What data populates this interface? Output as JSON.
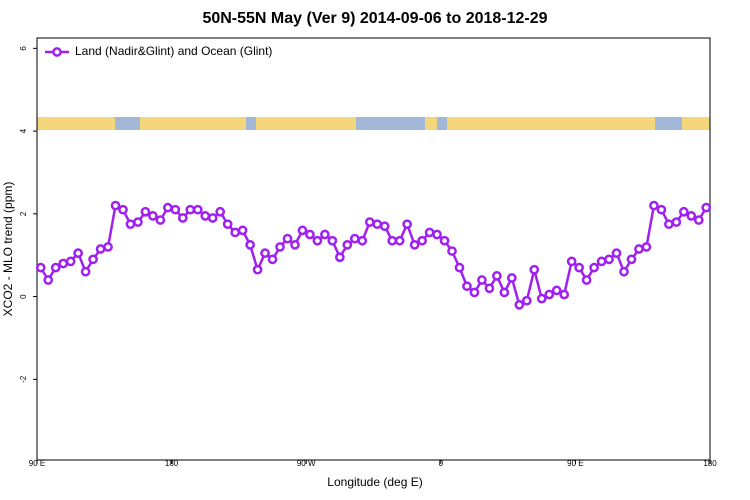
{
  "chart_data": {
    "type": "line",
    "title": "50N-55N May (Ver 9)   2014-09-06 to 2018-12-29",
    "x_label": "Longitude (deg E)",
    "y_label": "XCO2 - MLO trend (ppm)",
    "xlim": [
      90,
      540
    ],
    "ylim": [
      -3.95,
      6.25
    ],
    "xticks": [
      {
        "value": 90,
        "label": "90 E"
      },
      180,
      {
        "value": 270,
        "label": "90 W"
      },
      {
        "value": 360,
        "label": "0"
      },
      {
        "value": 450,
        "label": "90 E"
      },
      {
        "value": 540,
        "label": "180"
      }
    ],
    "yticks": [
      -2,
      0,
      2,
      4,
      6
    ],
    "legend": "top-left",
    "x": [
      92.5,
      97.5,
      102.5,
      107.5,
      112.5,
      117.5,
      122.5,
      127.5,
      132.5,
      137.5,
      142.5,
      147.5,
      152.5,
      157.5,
      162.5,
      167.5,
      172.5,
      177.5,
      182.5,
      187.5,
      192.5,
      197.5,
      202.5,
      207.5,
      212.5,
      217.5,
      222.5,
      227.5,
      232.5,
      237.5,
      242.5,
      247.5,
      252.5,
      257.5,
      262.5,
      267.5,
      272.5,
      277.5,
      282.5,
      287.5,
      292.5,
      297.5,
      302.5,
      307.5,
      312.5,
      317.5,
      322.5,
      327.5,
      332.5,
      337.5,
      342.5,
      347.5,
      352.5,
      357.5,
      362.5,
      367.5,
      372.5,
      377.5,
      382.5,
      387.5,
      392.5,
      397.5,
      402.5,
      407.5,
      412.5,
      417.5,
      422.5,
      427.5,
      432.5,
      437.5,
      442.5,
      447.5,
      452.5,
      457.5,
      462.5,
      467.5,
      472.5,
      477.5,
      482.5,
      487.5,
      492.5,
      497.5,
      502.5,
      507.5,
      512.5,
      517.5,
      522.5,
      527.5,
      532.5,
      537.5
    ],
    "series": [
      {
        "name": "Land (Nadir&Glint) and Ocean (Glint)",
        "color": "#a020f0",
        "values": [
          0.7,
          0.4,
          0.7,
          0.8,
          0.85,
          1.05,
          0.6,
          0.9,
          1.15,
          1.2,
          2.2,
          2.1,
          1.75,
          1.8,
          2.05,
          1.95,
          1.85,
          2.15,
          2.1,
          1.9,
          2.1,
          2.1,
          1.95,
          1.9,
          2.05,
          1.75,
          1.55,
          1.6,
          1.25,
          0.65,
          1.05,
          0.9,
          1.2,
          1.4,
          1.25,
          1.6,
          1.5,
          1.35,
          1.5,
          1.35,
          0.95,
          1.25,
          1.4,
          1.35,
          1.8,
          1.75,
          1.7,
          1.35,
          1.35,
          1.75,
          1.25,
          1.35,
          1.55,
          1.5,
          1.35,
          1.1,
          0.7,
          0.25,
          0.1,
          0.4,
          0.2,
          0.5,
          0.1,
          0.45,
          -0.2,
          -0.1,
          0.65,
          -0.05,
          0.05,
          0.15,
          0.05,
          0.85,
          0.7,
          0.4,
          0.7,
          0.85,
          0.9,
          1.05,
          0.6,
          0.9,
          1.15,
          1.2,
          2.2,
          2.1,
          1.75,
          1.8,
          2.05,
          1.95,
          1.85,
          2.15
        ]
      }
    ]
  }
}
